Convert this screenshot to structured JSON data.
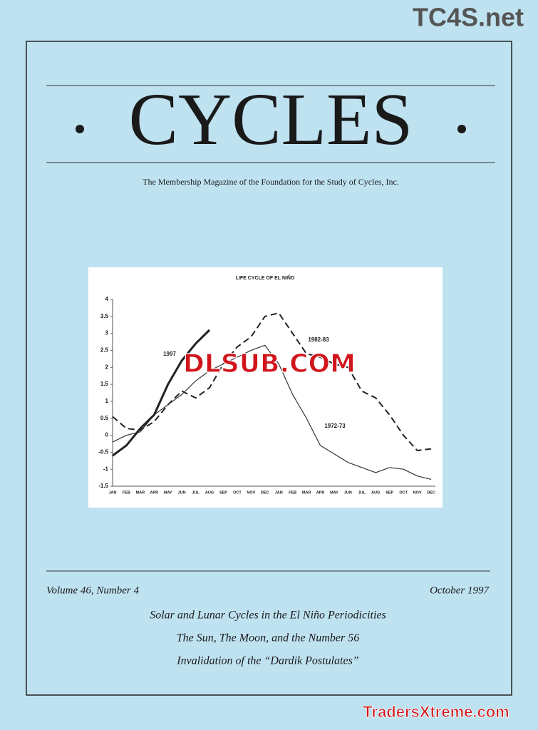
{
  "watermark_top": "TC4S.net",
  "masthead": {
    "title": "CYCLES",
    "subtitle": "The Membership Magazine of the Foundation for the Study of Cycles, Inc."
  },
  "chart_data": {
    "type": "line",
    "title": "LIFE CYCLE OF EL NIÑO",
    "categories": [
      "JAN",
      "FEB",
      "MAR",
      "APR",
      "MAY",
      "JUN",
      "JUL",
      "AUG",
      "SEP",
      "OCT",
      "NOV",
      "DEC",
      "JAN",
      "FEB",
      "MAR",
      "APR",
      "MAY",
      "JUN",
      "JUL",
      "AUG",
      "SEP",
      "OCT",
      "NOV",
      "DEC"
    ],
    "ylim": [
      -1.5,
      4
    ],
    "yticks": [
      -1.5,
      -1,
      -0.5,
      0,
      0.5,
      1,
      1.5,
      2,
      2.5,
      3,
      3.5,
      4
    ],
    "series": [
      {
        "name": "1982-83",
        "color": "#222222",
        "style": "dashed",
        "values": [
          0.55,
          0.2,
          0.15,
          0.4,
          0.9,
          1.3,
          1.1,
          1.4,
          2.1,
          2.6,
          2.9,
          3.5,
          3.6,
          3.0,
          2.4,
          2.3,
          2.1,
          2.0,
          1.3,
          1.1,
          0.6,
          0.0,
          -0.45,
          -0.4
        ]
      },
      {
        "name": "1972-73",
        "color": "#333333",
        "style": "thin",
        "values": [
          -0.2,
          0.0,
          0.1,
          0.6,
          0.9,
          1.2,
          1.6,
          1.9,
          2.1,
          2.3,
          2.5,
          2.65,
          2.1,
          1.2,
          0.5,
          -0.3,
          -0.55,
          -0.8,
          -0.95,
          -1.1,
          -0.95,
          -1.0,
          -1.2,
          -1.3
        ]
      },
      {
        "name": "1997",
        "color": "#222222",
        "style": "thick",
        "values": [
          -0.6,
          -0.3,
          0.2,
          0.6,
          1.5,
          2.2,
          2.7,
          3.1,
          null,
          null,
          null,
          null,
          null,
          null,
          null,
          null,
          null,
          null,
          null,
          null,
          null,
          null,
          null,
          null
        ]
      }
    ]
  },
  "watermark_mid": "DLSUB.COM",
  "issue": {
    "volume": "Volume 46, Number 4",
    "date": "October 1997"
  },
  "articles": [
    "Solar and Lunar Cycles in the El Niño Periodicities",
    "The Sun, The Moon, and the Number 56",
    "Invalidation of the “Dardik Postulates”"
  ],
  "watermark_bottom": "TradersXtreme.com"
}
